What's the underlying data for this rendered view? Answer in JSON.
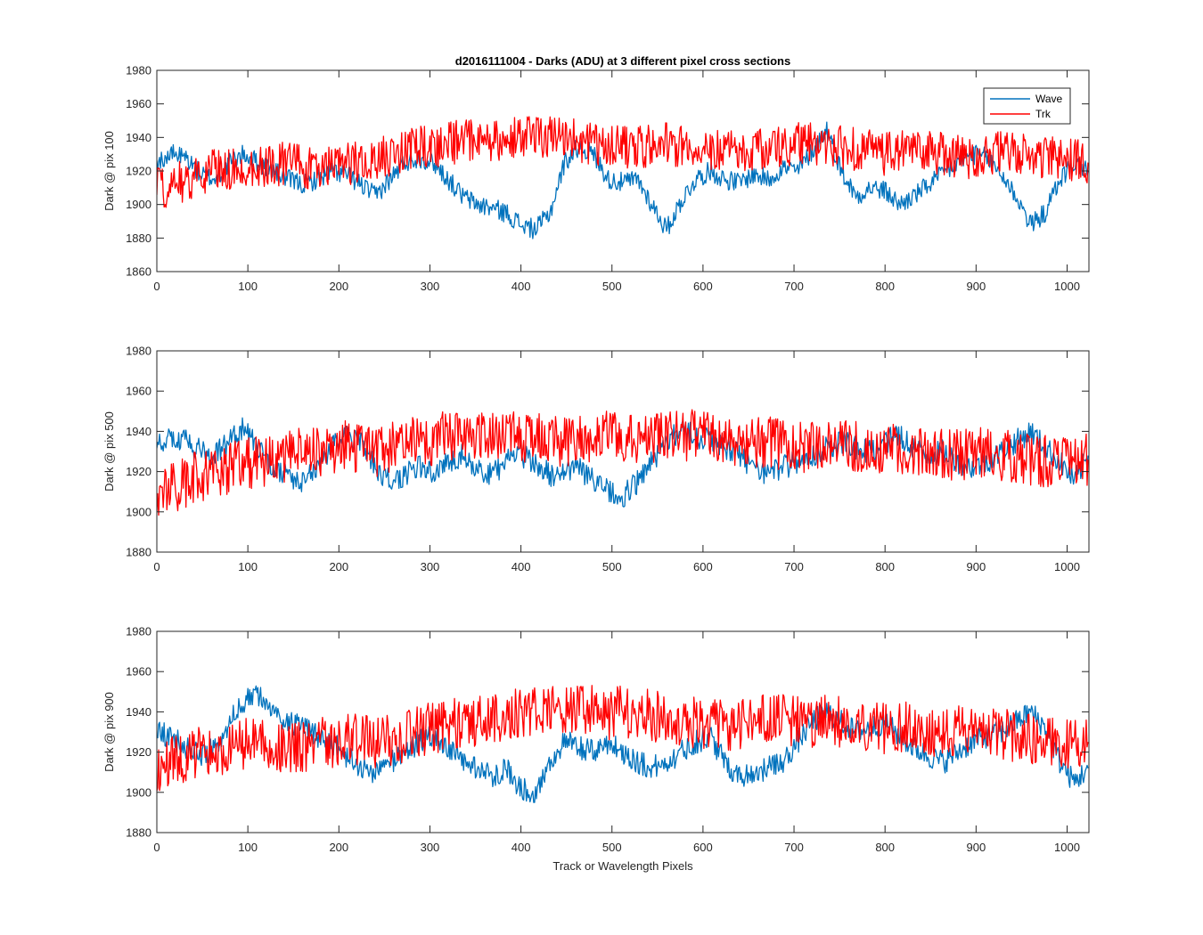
{
  "figure_title": "d2016111004 - Darks (ADU) at 3 different pixel cross sections",
  "colors": {
    "wave": "#0072BD",
    "trk": "#FF0000",
    "axis": "#262626",
    "background": "#FFFFFF"
  },
  "chart_data": [
    {
      "type": "line",
      "title": "d2016111004 - Darks (ADU) at 3 different pixel cross sections",
      "xlabel": "",
      "ylabel": "Dark @ pix 100",
      "xlim": [
        0,
        1024
      ],
      "ylim": [
        1860,
        1980
      ],
      "xticks": [
        0,
        100,
        200,
        300,
        400,
        500,
        600,
        700,
        800,
        900,
        1000
      ],
      "yticks": [
        1860,
        1880,
        1900,
        1920,
        1940,
        1960,
        1980
      ],
      "legend": {
        "position": "top-right",
        "entries": [
          "Wave",
          "Trk"
        ]
      },
      "series": [
        {
          "name": "Wave",
          "x": [
            0,
            16,
            32,
            48,
            64,
            80,
            96,
            112,
            128,
            144,
            160,
            176,
            192,
            208,
            224,
            240,
            256,
            272,
            288,
            304,
            320,
            336,
            352,
            368,
            384,
            400,
            416,
            432,
            448,
            464,
            480,
            496,
            512,
            528,
            544,
            560,
            576,
            592,
            608,
            624,
            640,
            656,
            672,
            688,
            704,
            720,
            736,
            752,
            768,
            784,
            800,
            816,
            832,
            848,
            864,
            880,
            896,
            912,
            928,
            944,
            960,
            976,
            992,
            1008,
            1023
          ],
          "y": [
            1925,
            1930,
            1928,
            1918,
            1915,
            1925,
            1930,
            1925,
            1920,
            1915,
            1912,
            1915,
            1920,
            1918,
            1912,
            1905,
            1915,
            1925,
            1928,
            1925,
            1915,
            1905,
            1900,
            1898,
            1895,
            1888,
            1885,
            1895,
            1925,
            1935,
            1930,
            1915,
            1913,
            1915,
            1900,
            1885,
            1902,
            1915,
            1920,
            1915,
            1913,
            1918,
            1915,
            1922,
            1920,
            1932,
            1945,
            1920,
            1905,
            1910,
            1908,
            1900,
            1905,
            1912,
            1918,
            1925,
            1930,
            1928,
            1918,
            1905,
            1888,
            1895,
            1915,
            1925,
            1920
          ]
        },
        {
          "name": "Trk",
          "x": [
            0,
            16,
            32,
            48,
            64,
            80,
            96,
            112,
            128,
            144,
            160,
            176,
            192,
            208,
            224,
            240,
            256,
            272,
            288,
            304,
            320,
            336,
            352,
            368,
            384,
            400,
            416,
            432,
            448,
            464,
            480,
            496,
            512,
            528,
            544,
            560,
            576,
            592,
            608,
            624,
            640,
            656,
            672,
            688,
            704,
            720,
            736,
            752,
            768,
            784,
            800,
            816,
            832,
            848,
            864,
            880,
            896,
            912,
            928,
            944,
            960,
            976,
            992,
            1008,
            1023
          ],
          "y": [
            1910,
            1912,
            1915,
            1918,
            1920,
            1922,
            1922,
            1924,
            1923,
            1925,
            1922,
            1920,
            1922,
            1924,
            1925,
            1926,
            1930,
            1932,
            1934,
            1935,
            1936,
            1938,
            1938,
            1937,
            1940,
            1940,
            1939,
            1940,
            1940,
            1938,
            1936,
            1935,
            1934,
            1935,
            1935,
            1936,
            1935,
            1934,
            1933,
            1934,
            1932,
            1933,
            1934,
            1935,
            1936,
            1936,
            1935,
            1934,
            1933,
            1932,
            1930,
            1931,
            1933,
            1932,
            1930,
            1929,
            1928,
            1930,
            1931,
            1930,
            1929,
            1928,
            1927,
            1926,
            1925
          ]
        }
      ]
    },
    {
      "type": "line",
      "title": "",
      "xlabel": "",
      "ylabel": "Dark @ pix 500",
      "xlim": [
        0,
        1024
      ],
      "ylim": [
        1880,
        1980
      ],
      "xticks": [
        0,
        100,
        200,
        300,
        400,
        500,
        600,
        700,
        800,
        900,
        1000
      ],
      "yticks": [
        1880,
        1900,
        1920,
        1940,
        1960,
        1980
      ],
      "series": [
        {
          "name": "Wave",
          "x": [
            0,
            16,
            32,
            48,
            64,
            80,
            96,
            112,
            128,
            144,
            160,
            176,
            192,
            208,
            224,
            240,
            256,
            272,
            288,
            304,
            320,
            336,
            352,
            368,
            384,
            400,
            416,
            432,
            448,
            464,
            480,
            496,
            512,
            528,
            544,
            560,
            576,
            592,
            608,
            624,
            640,
            656,
            672,
            688,
            704,
            720,
            736,
            752,
            768,
            784,
            800,
            816,
            832,
            848,
            864,
            880,
            896,
            912,
            928,
            944,
            960,
            976,
            992,
            1008,
            1023
          ],
          "y": [
            1932,
            1938,
            1935,
            1930,
            1928,
            1935,
            1942,
            1930,
            1922,
            1918,
            1915,
            1922,
            1932,
            1938,
            1935,
            1922,
            1915,
            1918,
            1922,
            1920,
            1925,
            1928,
            1922,
            1918,
            1925,
            1928,
            1925,
            1918,
            1920,
            1922,
            1915,
            1910,
            1908,
            1915,
            1925,
            1935,
            1940,
            1938,
            1935,
            1932,
            1928,
            1922,
            1918,
            1922,
            1925,
            1928,
            1932,
            1935,
            1932,
            1930,
            1935,
            1938,
            1932,
            1928,
            1930,
            1925,
            1922,
            1925,
            1930,
            1935,
            1940,
            1932,
            1925,
            1915,
            1928
          ]
        },
        {
          "name": "Trk",
          "x": [
            0,
            16,
            32,
            48,
            64,
            80,
            96,
            112,
            128,
            144,
            160,
            176,
            192,
            208,
            224,
            240,
            256,
            272,
            288,
            304,
            320,
            336,
            352,
            368,
            384,
            400,
            416,
            432,
            448,
            464,
            480,
            496,
            512,
            528,
            544,
            560,
            576,
            592,
            608,
            624,
            640,
            656,
            672,
            688,
            704,
            720,
            736,
            752,
            768,
            784,
            800,
            816,
            832,
            848,
            864,
            880,
            896,
            912,
            928,
            944,
            960,
            976,
            992,
            1008,
            1023
          ],
          "y": [
            1908,
            1912,
            1915,
            1918,
            1920,
            1922,
            1924,
            1925,
            1926,
            1928,
            1930,
            1930,
            1932,
            1933,
            1932,
            1930,
            1932,
            1934,
            1935,
            1936,
            1938,
            1938,
            1939,
            1940,
            1938,
            1937,
            1938,
            1936,
            1935,
            1936,
            1937,
            1938,
            1938,
            1937,
            1936,
            1937,
            1938,
            1938,
            1936,
            1935,
            1934,
            1934,
            1935,
            1933,
            1932,
            1933,
            1934,
            1935,
            1933,
            1931,
            1930,
            1931,
            1932,
            1930,
            1929,
            1928,
            1929,
            1930,
            1928,
            1927,
            1926,
            1925,
            1926,
            1925,
            1926
          ]
        }
      ]
    },
    {
      "type": "line",
      "title": "",
      "xlabel": "Track or Wavelength Pixels",
      "ylabel": "Dark @ pix 900",
      "xlim": [
        0,
        1024
      ],
      "ylim": [
        1880,
        1980
      ],
      "xticks": [
        0,
        100,
        200,
        300,
        400,
        500,
        600,
        700,
        800,
        900,
        1000
      ],
      "yticks": [
        1880,
        1900,
        1920,
        1940,
        1960,
        1980
      ],
      "series": [
        {
          "name": "Wave",
          "x": [
            0,
            16,
            32,
            48,
            64,
            80,
            96,
            112,
            128,
            144,
            160,
            176,
            192,
            208,
            224,
            240,
            256,
            272,
            288,
            304,
            320,
            336,
            352,
            368,
            384,
            400,
            416,
            432,
            448,
            464,
            480,
            496,
            512,
            528,
            544,
            560,
            576,
            592,
            608,
            624,
            640,
            656,
            672,
            688,
            704,
            720,
            736,
            752,
            768,
            784,
            800,
            816,
            832,
            848,
            864,
            880,
            896,
            912,
            928,
            944,
            960,
            976,
            992,
            1008,
            1023
          ],
          "y": [
            1930,
            1928,
            1922,
            1918,
            1922,
            1935,
            1945,
            1948,
            1940,
            1935,
            1932,
            1928,
            1925,
            1918,
            1912,
            1910,
            1915,
            1920,
            1925,
            1928,
            1922,
            1915,
            1912,
            1908,
            1912,
            1902,
            1900,
            1915,
            1925,
            1922,
            1920,
            1925,
            1920,
            1915,
            1912,
            1915,
            1920,
            1925,
            1928,
            1915,
            1908,
            1910,
            1912,
            1915,
            1925,
            1935,
            1940,
            1935,
            1930,
            1932,
            1935,
            1928,
            1922,
            1918,
            1915,
            1920,
            1925,
            1928,
            1930,
            1935,
            1940,
            1932,
            1915,
            1905,
            1912
          ]
        },
        {
          "name": "Trk",
          "x": [
            0,
            16,
            32,
            48,
            64,
            80,
            96,
            112,
            128,
            144,
            160,
            176,
            192,
            208,
            224,
            240,
            256,
            272,
            288,
            304,
            320,
            336,
            352,
            368,
            384,
            400,
            416,
            432,
            448,
            464,
            480,
            496,
            512,
            528,
            544,
            560,
            576,
            592,
            608,
            624,
            640,
            656,
            672,
            688,
            704,
            720,
            736,
            752,
            768,
            784,
            800,
            816,
            832,
            848,
            864,
            880,
            896,
            912,
            928,
            944,
            960,
            976,
            992,
            1008,
            1023
          ],
          "y": [
            1912,
            1915,
            1918,
            1920,
            1920,
            1922,
            1924,
            1923,
            1924,
            1922,
            1922,
            1924,
            1925,
            1926,
            1926,
            1925,
            1926,
            1928,
            1930,
            1932,
            1934,
            1935,
            1936,
            1936,
            1938,
            1940,
            1942,
            1940,
            1940,
            1941,
            1940,
            1939,
            1940,
            1939,
            1938,
            1936,
            1935,
            1935,
            1933,
            1934,
            1933,
            1935,
            1936,
            1936,
            1935,
            1934,
            1936,
            1935,
            1934,
            1933,
            1932,
            1933,
            1932,
            1931,
            1930,
            1931,
            1930,
            1930,
            1929,
            1928,
            1927,
            1926,
            1925,
            1923,
            1925
          ]
        }
      ]
    }
  ]
}
